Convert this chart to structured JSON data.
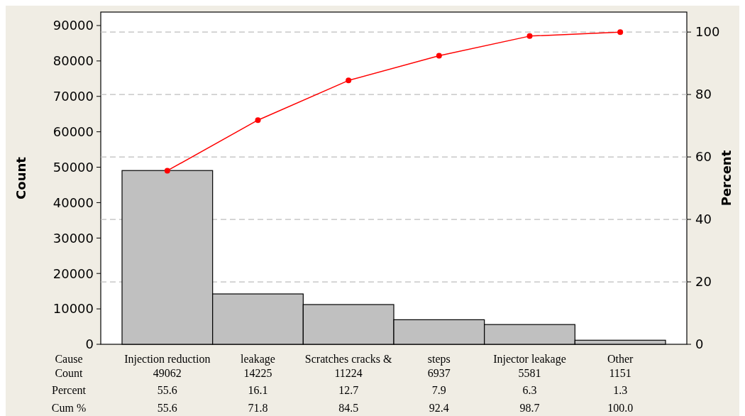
{
  "chart_data": {
    "type": "bar",
    "xlabel": "Cause",
    "ylabel": "Count",
    "y2label": "Percent",
    "categories": [
      "Injection reduction",
      "leakage",
      "Scratches cracks &",
      "steps",
      "Injector leakage",
      "Other"
    ],
    "series": [
      {
        "color": "#c0c0c0",
        "values": [
          49062,
          14225,
          11224,
          6937,
          5581,
          1151
        ],
        "value_labels": [
          "49062",
          "14225",
          "11224",
          "6937",
          "5581",
          "1151"
        ]
      },
      {
        "type": "line",
        "axis": "y2",
        "color": "#ff0000",
        "marker": "circle",
        "values": [
          55.6,
          71.8,
          84.5,
          92.4,
          98.7,
          100.0
        ],
        "value_labels": [
          "55.6",
          "71.8",
          "84.5",
          "92.4",
          "98.7",
          "100.0"
        ]
      }
    ],
    "annotations": [
      "Count",
      "Percent",
      "Cum %",
      "55.6",
      "16.1",
      "12.7",
      "7.9",
      "6.3",
      "1.3"
    ],
    "ylim": [
      0,
      93800
    ],
    "yticks": [
      0,
      10000,
      20000,
      30000,
      40000,
      50000,
      60000,
      70000,
      80000,
      90000
    ],
    "y2lim": [
      0,
      106.4
    ],
    "y2ticks": [
      0,
      20,
      40,
      60,
      80,
      100
    ],
    "grid": "y2"
  }
}
